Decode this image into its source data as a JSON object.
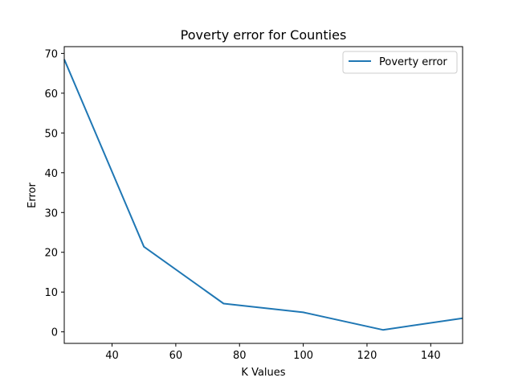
{
  "chart_data": {
    "type": "line",
    "title": "Poverty error for Counties",
    "xlabel": "K Values",
    "ylabel": "Error",
    "xlim": [
      25,
      150
    ],
    "ylim": [
      -2.9,
      71.7
    ],
    "x_ticks": [
      40,
      60,
      80,
      100,
      120,
      140
    ],
    "y_ticks": [
      0,
      10,
      20,
      30,
      40,
      50,
      60,
      70
    ],
    "grid": false,
    "legend_position": "top-right",
    "series": [
      {
        "name": "Poverty error",
        "color": "#1f77b4",
        "x": [
          25,
          50,
          75,
          100,
          125,
          150
        ],
        "y": [
          68.5,
          21.4,
          7.1,
          4.9,
          0.5,
          3.4
        ]
      }
    ]
  }
}
